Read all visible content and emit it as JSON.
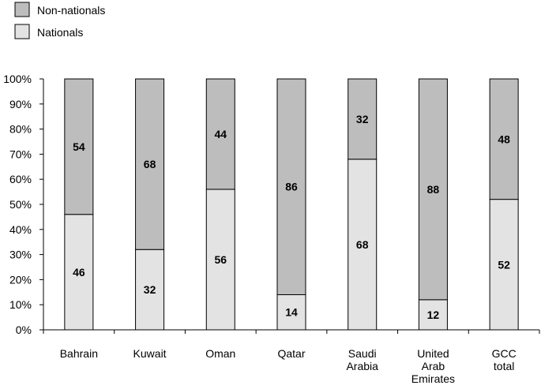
{
  "chart_data": {
    "type": "bar",
    "stacked": true,
    "percent": true,
    "categories": [
      "Bahrain",
      "Kuwait",
      "Oman",
      "Qatar",
      "Saudi Arabia",
      "United Arab Emirates",
      "GCC total"
    ],
    "category_lines": [
      [
        "Bahrain"
      ],
      [
        "Kuwait"
      ],
      [
        "Oman"
      ],
      [
        "Qatar"
      ],
      [
        "Saudi",
        "Arabia"
      ],
      [
        "United",
        "Arab",
        "Emirates"
      ],
      [
        "GCC",
        "total"
      ]
    ],
    "series": [
      {
        "name": "Nationals",
        "color": "#e3e3e3",
        "values": [
          46,
          32,
          56,
          14,
          68,
          12,
          52
        ]
      },
      {
        "name": "Non-nationals",
        "color": "#bdbdbd",
        "values": [
          54,
          68,
          44,
          86,
          32,
          88,
          48
        ]
      }
    ],
    "legend_order": [
      "Non-nationals",
      "Nationals"
    ],
    "legend_position": "top-left",
    "yticks": [
      "0%",
      "10%",
      "20%",
      "30%",
      "40%",
      "50%",
      "60%",
      "70%",
      "80%",
      "90%",
      "100%"
    ],
    "ylim": [
      0,
      100
    ],
    "grid": false,
    "title": "",
    "xlabel": "",
    "ylabel": ""
  }
}
